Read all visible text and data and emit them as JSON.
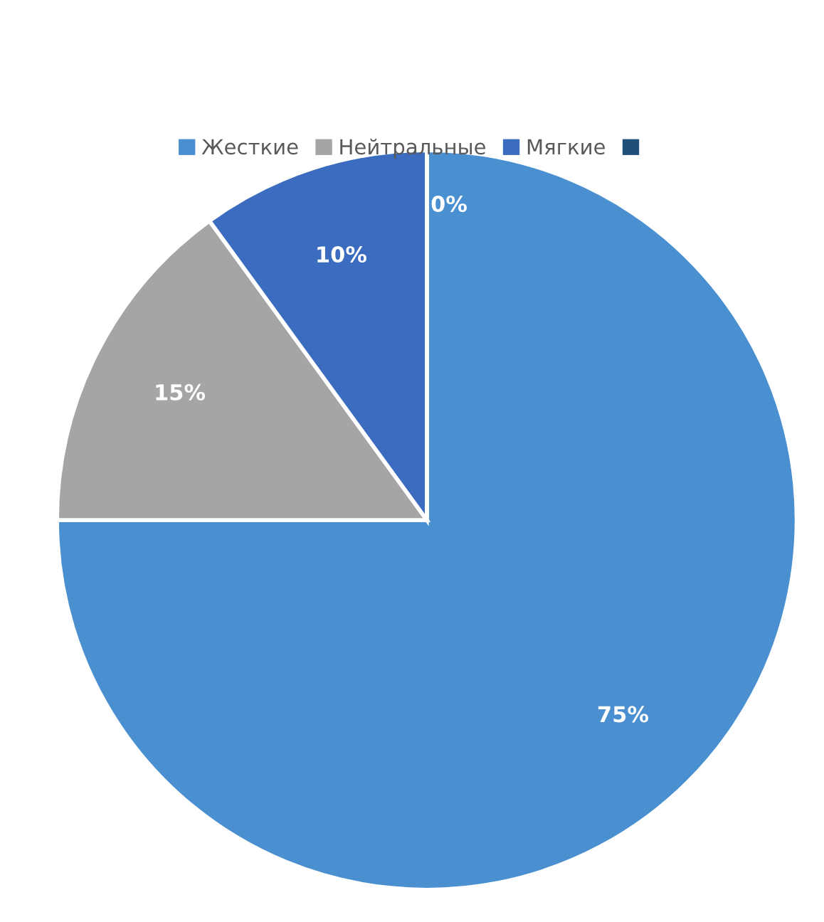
{
  "chart_data": {
    "type": "pie",
    "categories": [
      "Жесткие",
      "Нейтральные",
      "Мягкие",
      null
    ],
    "values": [
      75,
      15,
      10,
      0
    ],
    "colors": [
      "#4a8fd0",
      "#a5a5a5",
      "#3b6cbf",
      "#1f4e79"
    ],
    "value_labels": [
      "75%",
      "15%",
      "10%",
      "0%"
    ],
    "legend": "top"
  }
}
